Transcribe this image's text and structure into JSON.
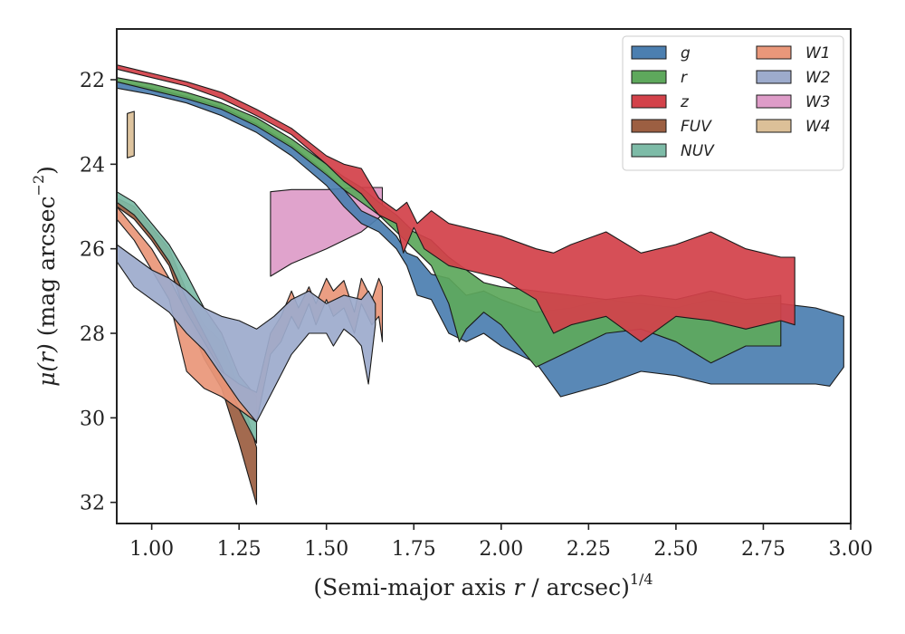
{
  "chart_data": {
    "type": "area",
    "xlabel_main": "(Semi-major axis ",
    "xlabel_var": "r",
    "xlabel_rest": " / arcsec)",
    "xlabel_sup": "1/4",
    "ylabel_var": "μ(r)",
    "ylabel_rest": " (mag arcsec",
    "ylabel_sup": "−2",
    "ylabel_close": ")",
    "xlim": [
      0.9,
      3.0
    ],
    "ylim": [
      32.5,
      20.8
    ],
    "y_inverted": true,
    "xticks": [
      {
        "v": 1.0,
        "label": "1.00"
      },
      {
        "v": 1.25,
        "label": "1.25"
      },
      {
        "v": 1.5,
        "label": "1.50"
      },
      {
        "v": 1.75,
        "label": "1.75"
      },
      {
        "v": 2.0,
        "label": "2.00"
      },
      {
        "v": 2.25,
        "label": "2.25"
      },
      {
        "v": 2.5,
        "label": "2.50"
      },
      {
        "v": 2.75,
        "label": "2.75"
      },
      {
        "v": 3.0,
        "label": "3.00"
      }
    ],
    "yticks": [
      {
        "v": 22,
        "label": "22"
      },
      {
        "v": 24,
        "label": "24"
      },
      {
        "v": 26,
        "label": "26"
      },
      {
        "v": 28,
        "label": "28"
      },
      {
        "v": 30,
        "label": "30"
      },
      {
        "v": 32,
        "label": "32"
      }
    ],
    "legend_position": "top-right",
    "legend_columns": 2,
    "series": [
      {
        "name": "W4",
        "color": "#dcc098",
        "upper": [
          [
            0.93,
            22.8
          ],
          [
            0.95,
            22.75
          ]
        ],
        "lower": [
          [
            0.93,
            23.85
          ],
          [
            0.95,
            23.8
          ]
        ]
      },
      {
        "name": "FUV",
        "color": "#9c5f42",
        "upper": [
          [
            0.9,
            24.8
          ],
          [
            0.95,
            25.0
          ],
          [
            1.0,
            25.5
          ],
          [
            1.05,
            26.0
          ],
          [
            1.1,
            27.0
          ],
          [
            1.15,
            27.8
          ],
          [
            1.2,
            28.2
          ],
          [
            1.25,
            29.3
          ],
          [
            1.3,
            30.7
          ]
        ],
        "lower": [
          [
            0.9,
            25.0
          ],
          [
            0.95,
            25.3
          ],
          [
            1.0,
            25.8
          ],
          [
            1.05,
            26.4
          ],
          [
            1.1,
            27.6
          ],
          [
            1.15,
            28.6
          ],
          [
            1.2,
            29.3
          ],
          [
            1.25,
            30.6
          ],
          [
            1.3,
            32.05
          ]
        ]
      },
      {
        "name": "NUV",
        "color": "#7dbba7",
        "upper": [
          [
            0.9,
            24.65
          ],
          [
            0.95,
            24.9
          ],
          [
            1.0,
            25.4
          ],
          [
            1.05,
            25.9
          ],
          [
            1.1,
            26.6
          ],
          [
            1.15,
            27.4
          ],
          [
            1.2,
            28.0
          ],
          [
            1.25,
            29.0
          ],
          [
            1.3,
            29.5
          ]
        ],
        "lower": [
          [
            0.9,
            24.9
          ],
          [
            0.95,
            25.2
          ],
          [
            1.0,
            25.7
          ],
          [
            1.05,
            26.3
          ],
          [
            1.1,
            27.2
          ],
          [
            1.15,
            28.0
          ],
          [
            1.2,
            28.8
          ],
          [
            1.25,
            29.8
          ],
          [
            1.3,
            30.6
          ]
        ]
      },
      {
        "name": "W1",
        "color": "#e9977a",
        "upper": [
          [
            0.9,
            25.0
          ],
          [
            0.95,
            25.5
          ],
          [
            1.0,
            26.0
          ],
          [
            1.05,
            26.7
          ],
          [
            1.1,
            27.5
          ],
          [
            1.15,
            28.2
          ],
          [
            1.2,
            28.9
          ],
          [
            1.25,
            29.2
          ],
          [
            1.3,
            29.4
          ],
          [
            1.34,
            28.0
          ],
          [
            1.37,
            27.6
          ],
          [
            1.4,
            27.0
          ],
          [
            1.42,
            27.4
          ],
          [
            1.45,
            26.9
          ],
          [
            1.47,
            27.3
          ],
          [
            1.5,
            26.7
          ],
          [
            1.52,
            27.0
          ],
          [
            1.55,
            26.75
          ],
          [
            1.58,
            27.5
          ],
          [
            1.6,
            26.7
          ],
          [
            1.63,
            27.2
          ],
          [
            1.65,
            26.7
          ],
          [
            1.66,
            26.9
          ]
        ],
        "lower": [
          [
            0.9,
            25.3
          ],
          [
            0.95,
            25.8
          ],
          [
            1.0,
            26.5
          ],
          [
            1.05,
            27.2
          ],
          [
            1.1,
            28.9
          ],
          [
            1.15,
            29.3
          ],
          [
            1.2,
            29.5
          ],
          [
            1.25,
            29.8
          ],
          [
            1.3,
            30.1
          ],
          [
            1.34,
            28.5
          ],
          [
            1.37,
            28.2
          ],
          [
            1.4,
            27.6
          ],
          [
            1.42,
            27.9
          ],
          [
            1.45,
            27.3
          ],
          [
            1.47,
            27.8
          ],
          [
            1.5,
            27.2
          ],
          [
            1.52,
            27.6
          ],
          [
            1.55,
            27.4
          ],
          [
            1.58,
            28.0
          ],
          [
            1.6,
            27.3
          ],
          [
            1.63,
            27.8
          ],
          [
            1.65,
            27.6
          ],
          [
            1.66,
            28.2
          ]
        ]
      },
      {
        "name": "W2",
        "color": "#9dabcc",
        "upper": [
          [
            0.9,
            25.9
          ],
          [
            1.0,
            26.5
          ],
          [
            1.05,
            26.7
          ],
          [
            1.1,
            27.0
          ],
          [
            1.15,
            27.4
          ],
          [
            1.2,
            27.6
          ],
          [
            1.25,
            27.7
          ],
          [
            1.3,
            27.9
          ],
          [
            1.35,
            27.6
          ],
          [
            1.4,
            27.2
          ],
          [
            1.45,
            27.0
          ],
          [
            1.5,
            27.3
          ],
          [
            1.55,
            27.1
          ],
          [
            1.6,
            27.2
          ],
          [
            1.62,
            27.0
          ],
          [
            1.64,
            27.3
          ]
        ],
        "lower": [
          [
            0.9,
            26.3
          ],
          [
            0.95,
            26.9
          ],
          [
            1.0,
            27.2
          ],
          [
            1.05,
            27.5
          ],
          [
            1.1,
            28.0
          ],
          [
            1.15,
            28.4
          ],
          [
            1.2,
            29.0
          ],
          [
            1.25,
            29.6
          ],
          [
            1.3,
            30.1
          ],
          [
            1.35,
            29.3
          ],
          [
            1.4,
            28.5
          ],
          [
            1.45,
            28.0
          ],
          [
            1.5,
            28.0
          ],
          [
            1.52,
            28.3
          ],
          [
            1.55,
            27.9
          ],
          [
            1.58,
            28.1
          ],
          [
            1.6,
            28.3
          ],
          [
            1.62,
            29.2
          ],
          [
            1.64,
            27.8
          ]
        ]
      },
      {
        "name": "W3",
        "color": "#de9cc8",
        "upper": [
          [
            1.34,
            24.65
          ],
          [
            1.4,
            24.6
          ],
          [
            1.5,
            24.6
          ],
          [
            1.6,
            24.55
          ],
          [
            1.66,
            24.55
          ]
        ],
        "lower": [
          [
            1.34,
            26.65
          ],
          [
            1.4,
            26.35
          ],
          [
            1.5,
            26.0
          ],
          [
            1.6,
            25.6
          ],
          [
            1.66,
            25.2
          ]
        ]
      },
      {
        "name": "g",
        "color": "#4c7fb0",
        "upper": [
          [
            0.9,
            22.05
          ],
          [
            1.0,
            22.2
          ],
          [
            1.1,
            22.4
          ],
          [
            1.2,
            22.65
          ],
          [
            1.3,
            23.05
          ],
          [
            1.4,
            23.55
          ],
          [
            1.5,
            24.2
          ],
          [
            1.55,
            24.6
          ],
          [
            1.6,
            25.1
          ],
          [
            1.65,
            25.3
          ],
          [
            1.7,
            25.7
          ],
          [
            1.73,
            26.1
          ],
          [
            1.76,
            26.2
          ],
          [
            1.8,
            26.6
          ],
          [
            1.85,
            26.7
          ],
          [
            1.9,
            27.1
          ],
          [
            1.95,
            27.0
          ],
          [
            2.0,
            27.2
          ],
          [
            2.1,
            27.5
          ],
          [
            2.2,
            27.4
          ],
          [
            2.3,
            27.2
          ],
          [
            2.4,
            27.3
          ],
          [
            2.5,
            27.4
          ],
          [
            2.6,
            27.2
          ],
          [
            2.7,
            27.3
          ],
          [
            2.8,
            27.3
          ],
          [
            2.9,
            27.4
          ],
          [
            2.98,
            27.6
          ]
        ],
        "lower": [
          [
            0.9,
            22.2
          ],
          [
            1.0,
            22.35
          ],
          [
            1.1,
            22.55
          ],
          [
            1.2,
            22.85
          ],
          [
            1.3,
            23.25
          ],
          [
            1.4,
            23.8
          ],
          [
            1.5,
            24.5
          ],
          [
            1.55,
            25.0
          ],
          [
            1.6,
            25.4
          ],
          [
            1.65,
            25.6
          ],
          [
            1.7,
            26.0
          ],
          [
            1.73,
            26.4
          ],
          [
            1.76,
            27.1
          ],
          [
            1.8,
            27.2
          ],
          [
            1.85,
            28.0
          ],
          [
            1.9,
            28.2
          ],
          [
            1.95,
            28.0
          ],
          [
            2.0,
            28.3
          ],
          [
            2.1,
            28.7
          ],
          [
            2.17,
            29.5
          ],
          [
            2.3,
            29.2
          ],
          [
            2.4,
            28.9
          ],
          [
            2.5,
            29.0
          ],
          [
            2.6,
            29.2
          ],
          [
            2.7,
            29.2
          ],
          [
            2.8,
            29.2
          ],
          [
            2.9,
            29.2
          ],
          [
            2.94,
            29.25
          ],
          [
            2.98,
            28.8
          ]
        ]
      },
      {
        "name": "r",
        "color": "#5ea85c",
        "upper": [
          [
            0.9,
            21.95
          ],
          [
            1.0,
            22.1
          ],
          [
            1.1,
            22.3
          ],
          [
            1.2,
            22.55
          ],
          [
            1.3,
            22.9
          ],
          [
            1.4,
            23.4
          ],
          [
            1.5,
            24.0
          ],
          [
            1.55,
            24.3
          ],
          [
            1.6,
            24.55
          ],
          [
            1.65,
            24.9
          ],
          [
            1.7,
            25.2
          ],
          [
            1.75,
            25.6
          ],
          [
            1.8,
            25.8
          ],
          [
            1.85,
            26.2
          ],
          [
            1.9,
            26.5
          ],
          [
            1.95,
            26.8
          ],
          [
            2.0,
            26.9
          ],
          [
            2.1,
            27.0
          ],
          [
            2.2,
            27.1
          ],
          [
            2.3,
            27.2
          ],
          [
            2.4,
            27.1
          ],
          [
            2.5,
            27.2
          ],
          [
            2.6,
            27.0
          ],
          [
            2.7,
            27.2
          ],
          [
            2.8,
            27.1
          ]
        ],
        "lower": [
          [
            0.9,
            22.05
          ],
          [
            1.0,
            22.25
          ],
          [
            1.1,
            22.45
          ],
          [
            1.2,
            22.7
          ],
          [
            1.3,
            23.1
          ],
          [
            1.4,
            23.6
          ],
          [
            1.5,
            24.25
          ],
          [
            1.55,
            24.6
          ],
          [
            1.6,
            24.9
          ],
          [
            1.65,
            25.2
          ],
          [
            1.7,
            25.6
          ],
          [
            1.75,
            26.0
          ],
          [
            1.8,
            26.4
          ],
          [
            1.85,
            27.3
          ],
          [
            1.88,
            28.2
          ],
          [
            1.9,
            27.9
          ],
          [
            1.95,
            27.5
          ],
          [
            2.0,
            27.8
          ],
          [
            2.1,
            28.8
          ],
          [
            2.2,
            28.4
          ],
          [
            2.3,
            28.0
          ],
          [
            2.4,
            27.9
          ],
          [
            2.5,
            28.2
          ],
          [
            2.6,
            28.7
          ],
          [
            2.7,
            28.3
          ],
          [
            2.8,
            28.3
          ]
        ]
      },
      {
        "name": "z",
        "color": "#d3424a",
        "upper": [
          [
            0.9,
            21.65
          ],
          [
            1.0,
            21.85
          ],
          [
            1.1,
            22.05
          ],
          [
            1.2,
            22.3
          ],
          [
            1.3,
            22.7
          ],
          [
            1.4,
            23.15
          ],
          [
            1.5,
            23.8
          ],
          [
            1.55,
            24.0
          ],
          [
            1.6,
            24.1
          ],
          [
            1.65,
            24.8
          ],
          [
            1.7,
            25.1
          ],
          [
            1.73,
            24.9
          ],
          [
            1.76,
            25.4
          ],
          [
            1.8,
            25.1
          ],
          [
            1.85,
            25.4
          ],
          [
            1.9,
            25.5
          ],
          [
            2.0,
            25.7
          ],
          [
            2.1,
            26.0
          ],
          [
            2.15,
            26.1
          ],
          [
            2.2,
            25.9
          ],
          [
            2.3,
            25.6
          ],
          [
            2.4,
            26.1
          ],
          [
            2.5,
            25.9
          ],
          [
            2.6,
            25.6
          ],
          [
            2.7,
            26.0
          ],
          [
            2.8,
            26.2
          ],
          [
            2.84,
            26.2
          ]
        ],
        "lower": [
          [
            0.9,
            21.75
          ],
          [
            1.0,
            21.95
          ],
          [
            1.1,
            22.15
          ],
          [
            1.2,
            22.45
          ],
          [
            1.3,
            22.85
          ],
          [
            1.4,
            23.3
          ],
          [
            1.5,
            24.0
          ],
          [
            1.55,
            24.4
          ],
          [
            1.6,
            24.7
          ],
          [
            1.65,
            25.2
          ],
          [
            1.7,
            25.4
          ],
          [
            1.72,
            26.1
          ],
          [
            1.75,
            25.5
          ],
          [
            1.78,
            26.0
          ],
          [
            1.85,
            26.4
          ],
          [
            1.9,
            26.5
          ],
          [
            2.0,
            26.7
          ],
          [
            2.1,
            27.2
          ],
          [
            2.15,
            28.0
          ],
          [
            2.2,
            27.8
          ],
          [
            2.3,
            27.6
          ],
          [
            2.4,
            28.2
          ],
          [
            2.5,
            27.6
          ],
          [
            2.6,
            27.7
          ],
          [
            2.7,
            27.9
          ],
          [
            2.8,
            27.7
          ],
          [
            2.84,
            27.8
          ]
        ]
      }
    ]
  }
}
